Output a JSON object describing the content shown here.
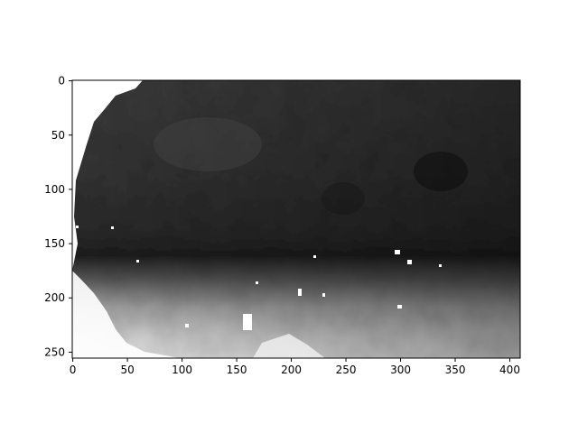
{
  "chart_data": {
    "type": "heatmap",
    "title": "",
    "xlabel": "",
    "ylabel": "",
    "colormap": "gray",
    "image_shape": [
      256,
      410
    ],
    "xlim": [
      -0.5,
      409.5
    ],
    "ylim": [
      255.5,
      -0.5
    ],
    "x_ticks": [
      0,
      50,
      100,
      150,
      200,
      250,
      300,
      350,
      400
    ],
    "y_ticks": [
      0,
      50,
      100,
      150,
      200,
      250
    ],
    "x_tick_labels": [
      "0",
      "50",
      "100",
      "150",
      "200",
      "250",
      "300",
      "350",
      "400"
    ],
    "y_tick_labels": [
      "0",
      "50",
      "100",
      "150",
      "200",
      "250"
    ],
    "grid": false,
    "description_bands": [
      {
        "row_range": [
          0,
          140
        ],
        "level": "dark"
      },
      {
        "row_range": [
          140,
          170
        ],
        "level": "darkest"
      },
      {
        "row_range": [
          170,
          256
        ],
        "level": "light"
      }
    ],
    "colors": {
      "background": "#ffffff",
      "dark": "#3a3a3a",
      "darkest": "#202020",
      "light": "#e6e6e6",
      "nodata": "#ffffff"
    }
  }
}
